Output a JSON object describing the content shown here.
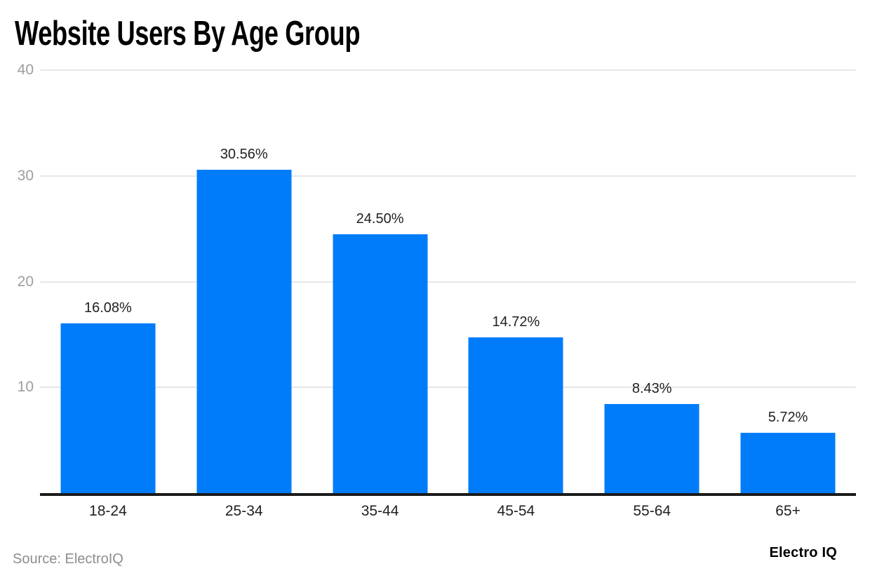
{
  "header": {
    "title": "Website Users By Age Group"
  },
  "footer": {
    "source": "Source: ElectroIQ",
    "logo": "Electro IQ"
  },
  "colors": {
    "bar": "#007cfa",
    "grid": "#e7e7e7",
    "axis": "#1a1a1a",
    "ytick_text": "#9e9e9e",
    "label_text": "#202124",
    "background": "#ffffff"
  },
  "chart_data": {
    "type": "bar",
    "title": "Website Users By Age Group",
    "categories": [
      "18-24",
      "25-34",
      "35-44",
      "45-54",
      "55-64",
      "65+"
    ],
    "values": [
      16.08,
      30.56,
      24.5,
      14.72,
      8.43,
      5.72
    ],
    "value_labels": [
      "16.08%",
      "30.56%",
      "24.50%",
      "14.72%",
      "8.43%",
      "5.72%"
    ],
    "xlabel": "",
    "ylabel": "",
    "ylim": [
      0,
      40
    ],
    "yticks": [
      10,
      20,
      30,
      40
    ],
    "grid": true,
    "legend": false,
    "legend_position": "none"
  }
}
